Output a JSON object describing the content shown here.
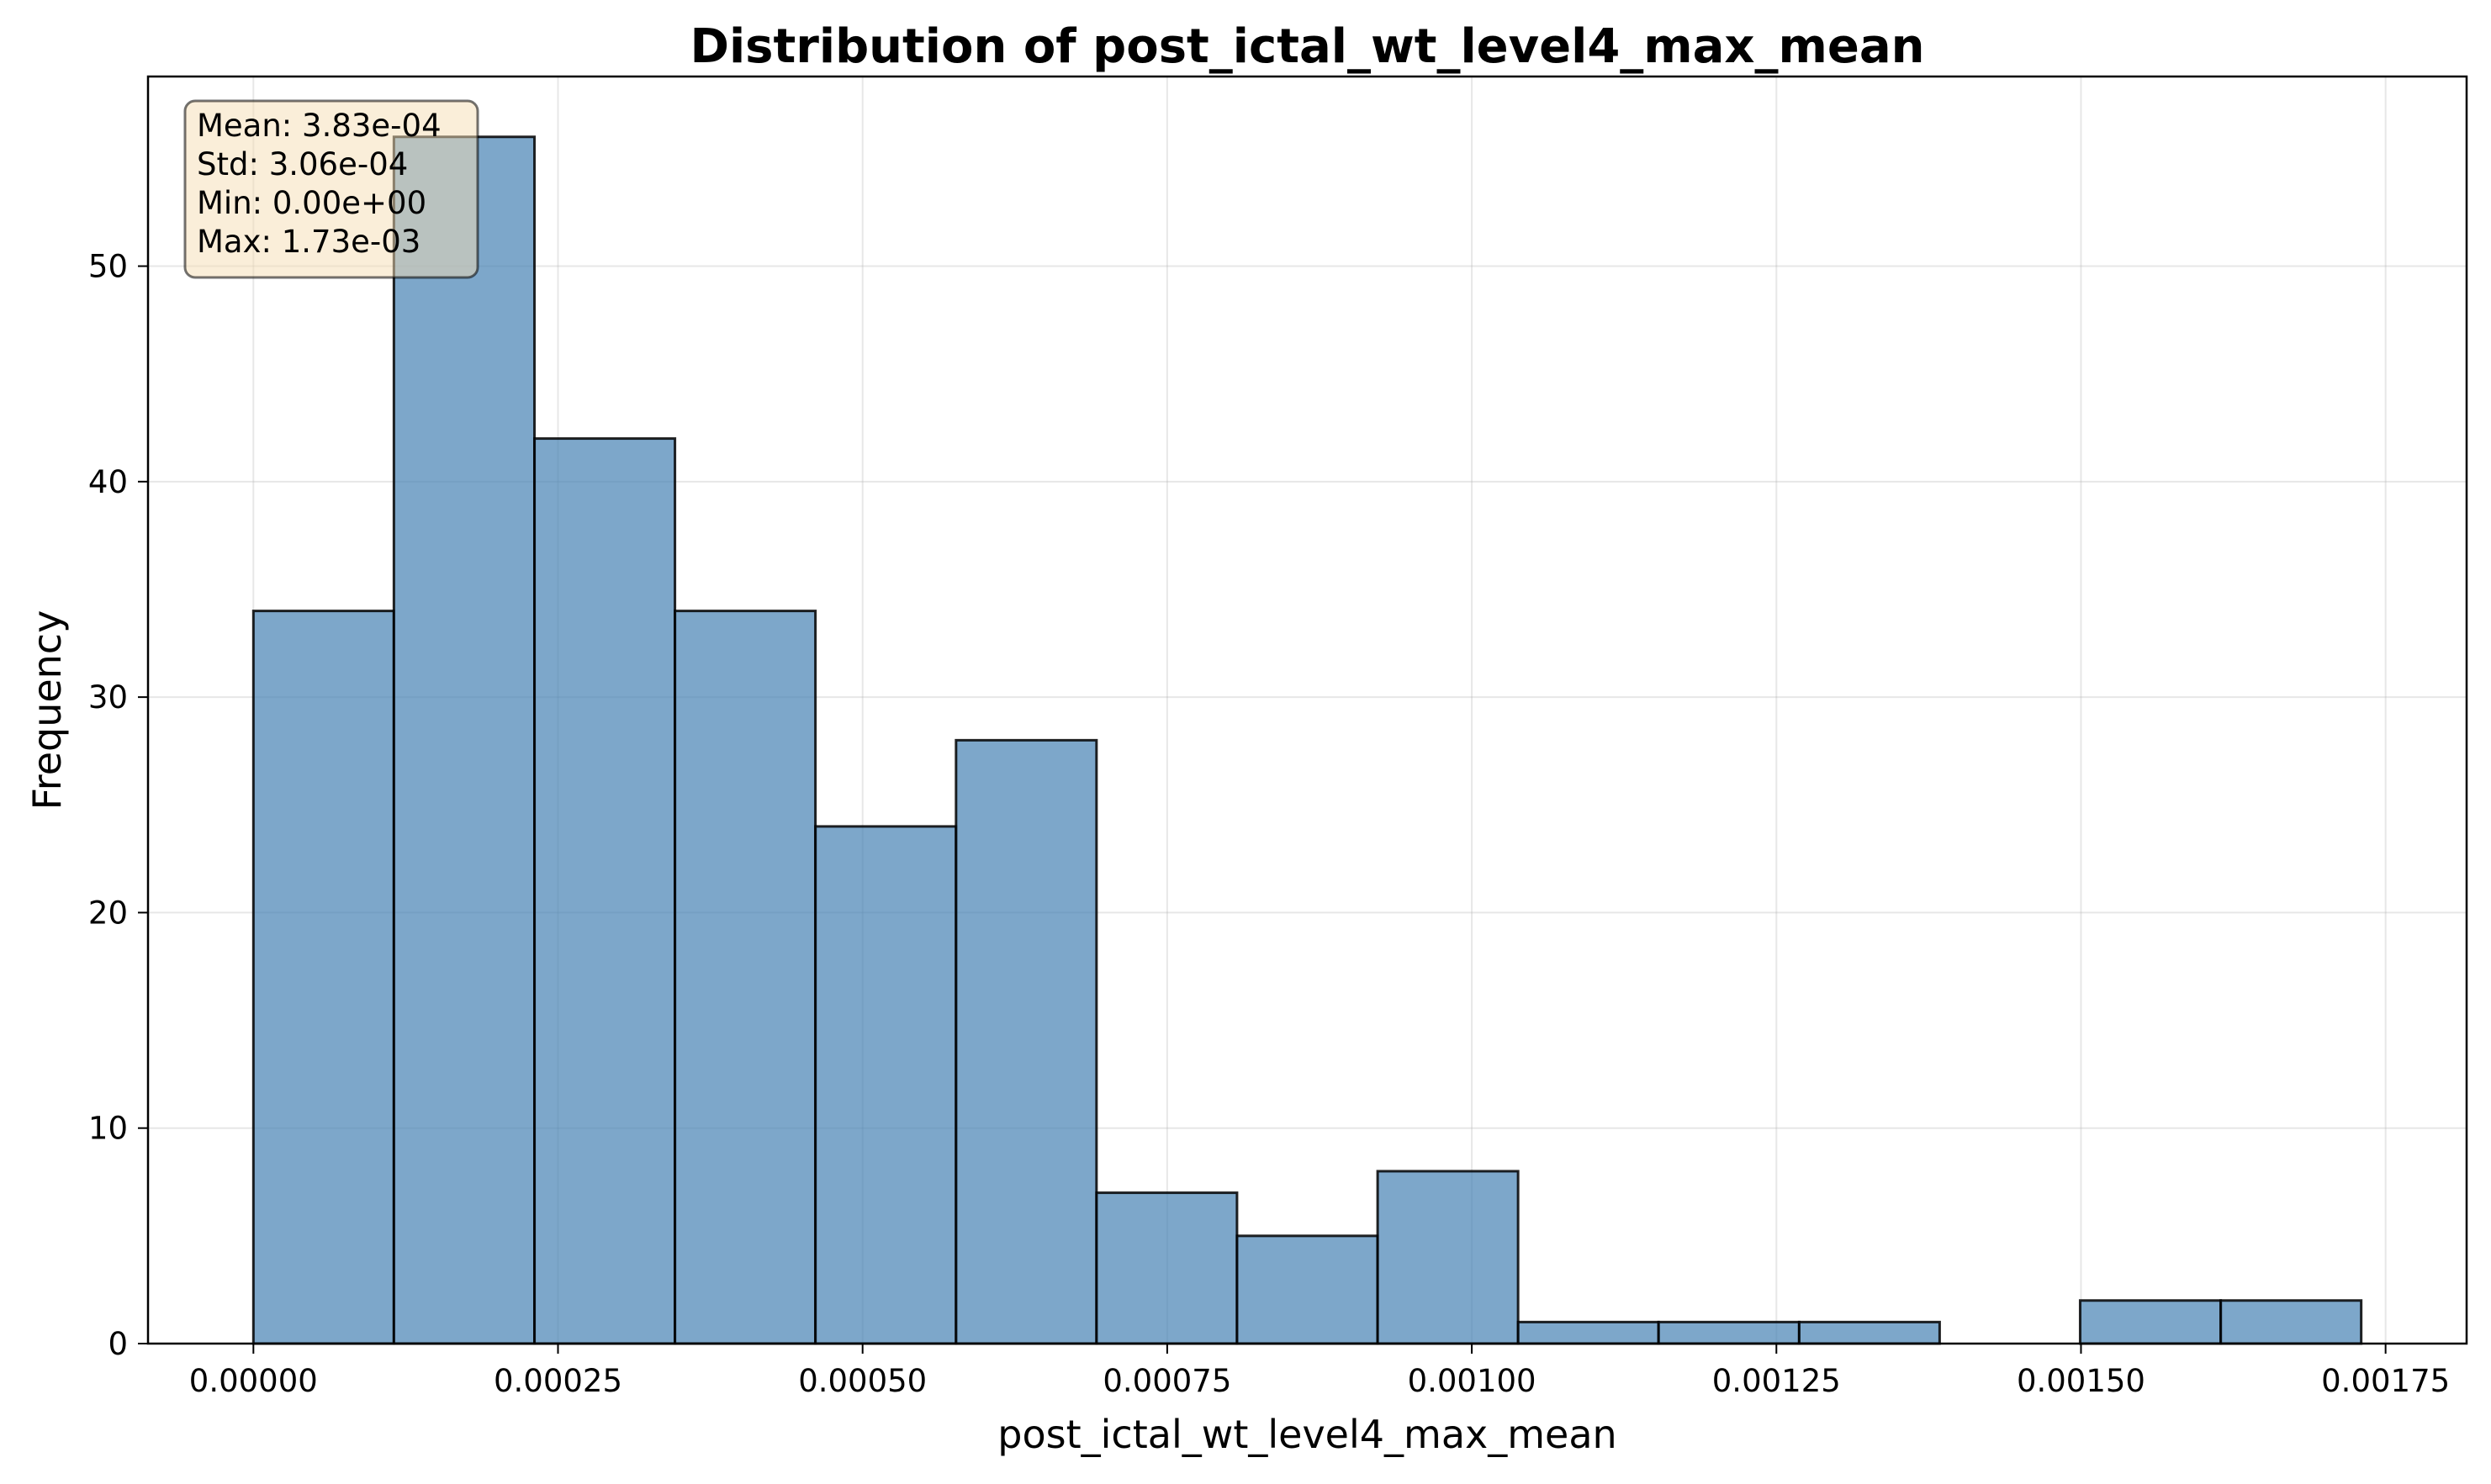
{
  "chart_data": {
    "type": "bar",
    "subtype": "histogram",
    "title": "Distribution of post_ictal_wt_level4_max_mean",
    "xlabel": "post_ictal_wt_level4_max_mean",
    "ylabel": "Frequency",
    "bin_edges": [
      0.0,
      0.0001153,
      0.0002307,
      0.000346,
      0.0004613,
      0.0005767,
      0.000692,
      0.0008073,
      0.0009227,
      0.001038,
      0.0011533,
      0.0012687,
      0.001384,
      0.0014993,
      0.0016147,
      0.00173
    ],
    "values": [
      34,
      56,
      42,
      34,
      24,
      28,
      7,
      5,
      8,
      1,
      1,
      1,
      0,
      2,
      2
    ],
    "xlim": [
      -8.65e-05,
      0.0018165
    ],
    "ylim": [
      0,
      58.8
    ],
    "xticks": [
      0.0,
      0.00025,
      0.0005,
      0.00075,
      0.001,
      0.00125,
      0.0015,
      0.00175
    ],
    "xtick_labels": [
      "0.00000",
      "0.00025",
      "0.00050",
      "0.00075",
      "0.00100",
      "0.00125",
      "0.00150",
      "0.00175"
    ],
    "yticks": [
      0,
      10,
      20,
      30,
      40,
      50
    ],
    "ytick_labels": [
      "0",
      "10",
      "20",
      "30",
      "40",
      "50"
    ],
    "grid": true,
    "bar_color": "#4682b4",
    "bar_alpha": 0.7,
    "edge_color": "#000000",
    "stats_box": {
      "placement": "top-left",
      "lines": [
        "Mean: 3.83e-04",
        "Std: 3.06e-04",
        "Min: 0.00e+00",
        "Max: 1.73e-03"
      ],
      "background": "#f5deb3",
      "alpha": 0.5
    }
  }
}
